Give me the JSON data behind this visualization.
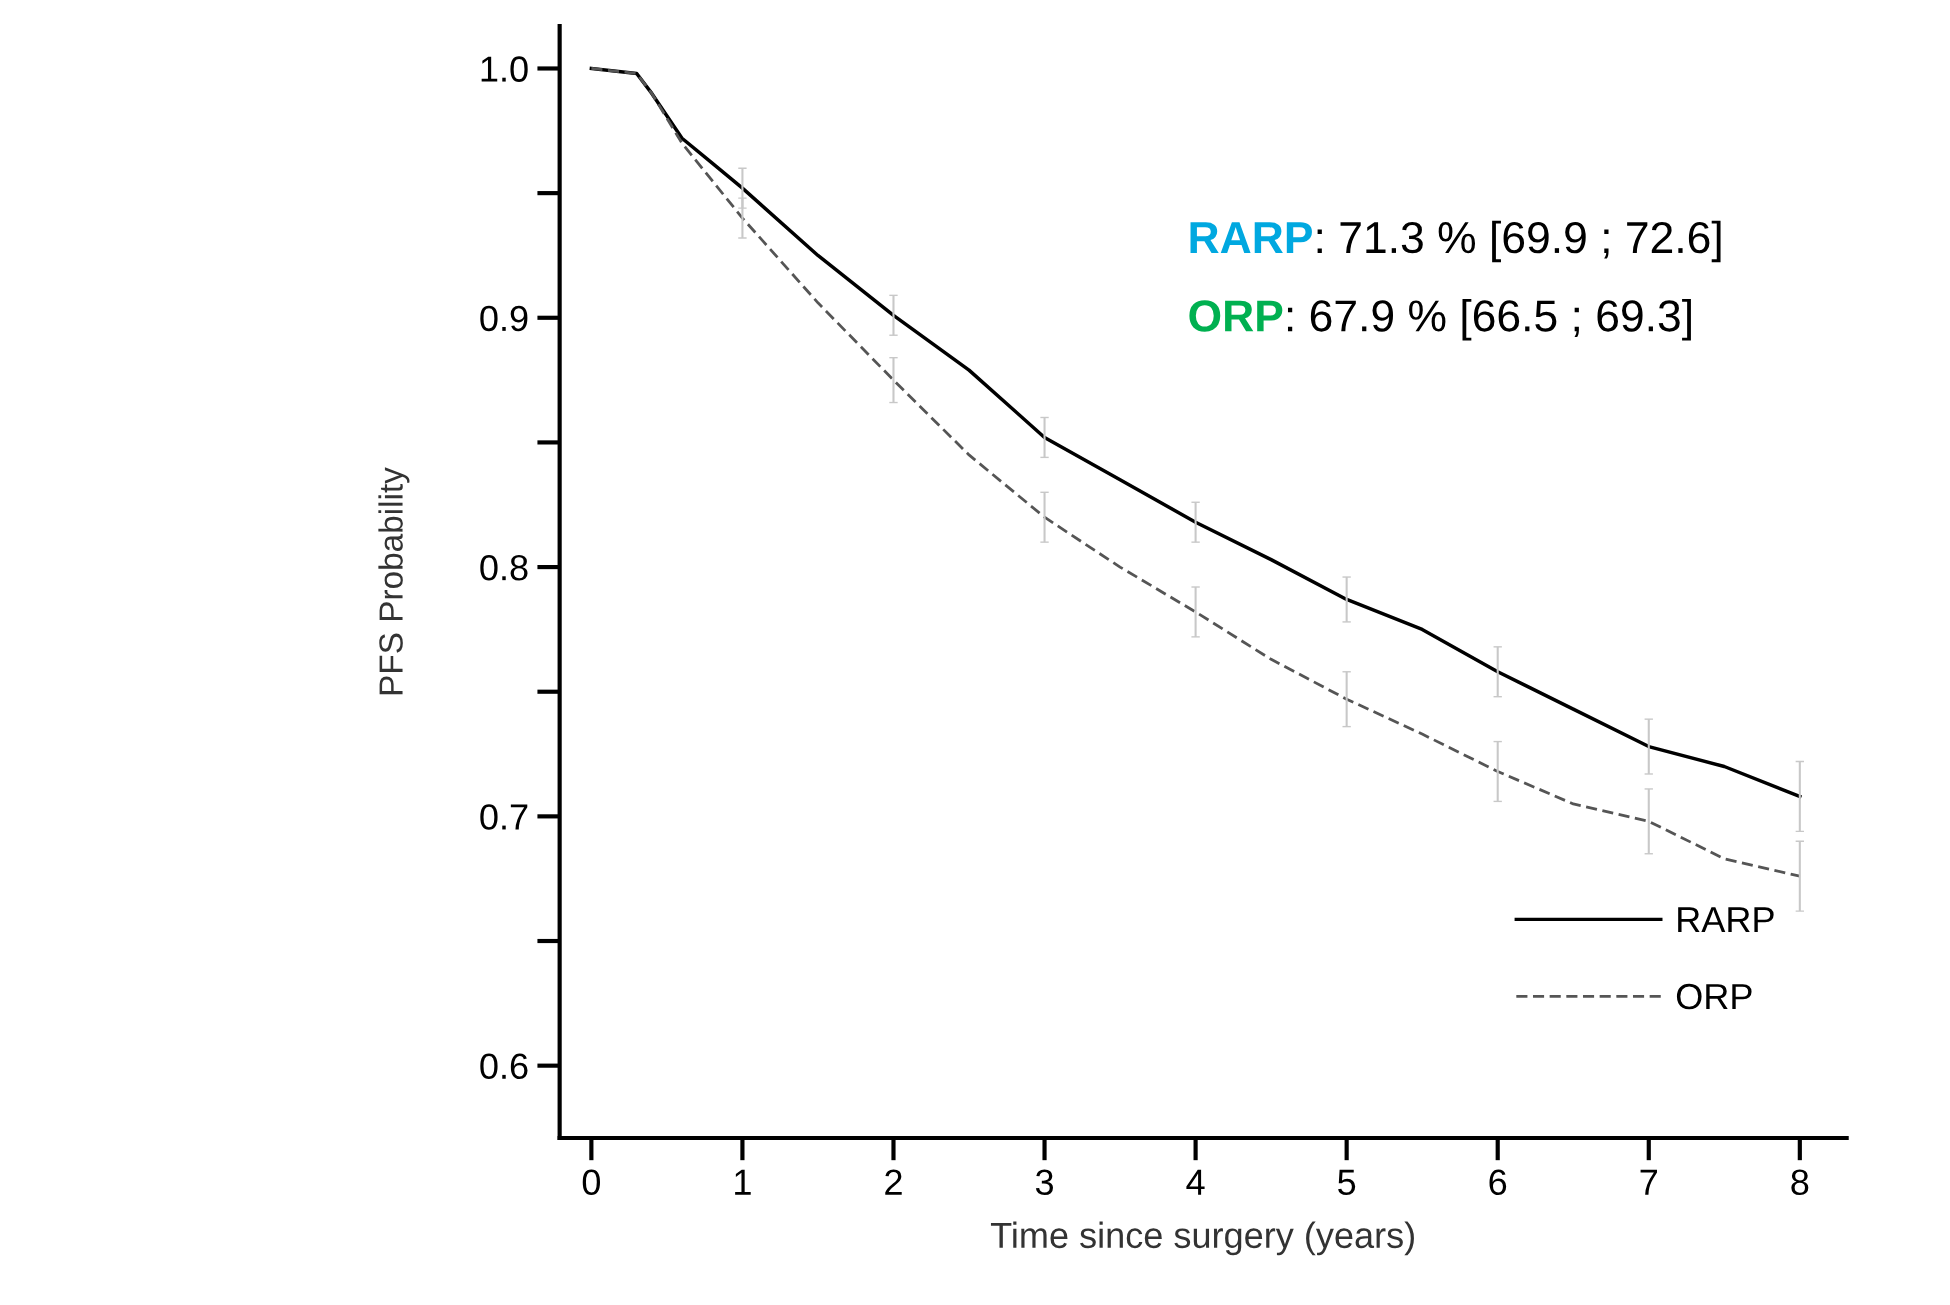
{
  "chart_data": {
    "type": "line",
    "xlabel": "Time since surgery (years)",
    "ylabel": "PFS Probability",
    "x": [
      0,
      0.3,
      0.4,
      0.6,
      0.8,
      1,
      1.5,
      2,
      2.5,
      3,
      3.5,
      4,
      4.5,
      5,
      5.5,
      6,
      6.5,
      7,
      7.5,
      8
    ],
    "series": [
      {
        "name": "RARP",
        "color": "#000000",
        "line_style": "solid",
        "values": [
          1.0,
          0.998,
          0.99,
          0.972,
          0.962,
          0.952,
          0.925,
          0.901,
          0.879,
          0.852,
          0.835,
          0.818,
          0.803,
          0.787,
          0.775,
          0.758,
          0.743,
          0.728,
          0.72,
          0.708
        ],
        "errors": [
          null,
          null,
          null,
          null,
          null,
          0.008,
          null,
          0.008,
          null,
          0.008,
          null,
          0.008,
          null,
          0.009,
          null,
          0.01,
          null,
          0.011,
          null,
          0.014
        ]
      },
      {
        "name": "ORP",
        "color": "#555555",
        "line_style": "dashed",
        "values": [
          1.0,
          0.998,
          0.99,
          0.97,
          0.955,
          0.94,
          0.906,
          0.875,
          0.845,
          0.82,
          0.8,
          0.782,
          0.763,
          0.747,
          0.733,
          0.718,
          0.705,
          0.698,
          0.683,
          0.676
        ],
        "errors": [
          null,
          null,
          null,
          null,
          null,
          0.008,
          null,
          0.009,
          null,
          0.01,
          null,
          0.01,
          null,
          0.011,
          null,
          0.012,
          null,
          0.013,
          null,
          0.014
        ]
      }
    ],
    "xlim": [
      -0.21,
      8.31
    ],
    "ylim": [
      0.571,
      1.017
    ],
    "xticks": [
      0,
      1,
      2,
      3,
      4,
      5,
      6,
      7,
      8
    ],
    "yticks": [
      {
        "value": 0.6,
        "label": "0.6"
      },
      {
        "value": 0.7,
        "label": "0.7"
      },
      {
        "value": 0.8,
        "label": "0.8"
      },
      {
        "value": 0.9,
        "label": "0.9"
      },
      {
        "value": 1.0,
        "label": "1.0"
      }
    ],
    "annotations": [
      "RARP: 71.3 % [69.9 ; 72.6]",
      "ORP: 67.9 % [66.5 ; 69.3]"
    ],
    "legend": "bottom right",
    "marker": "none",
    "grid": false
  }
}
